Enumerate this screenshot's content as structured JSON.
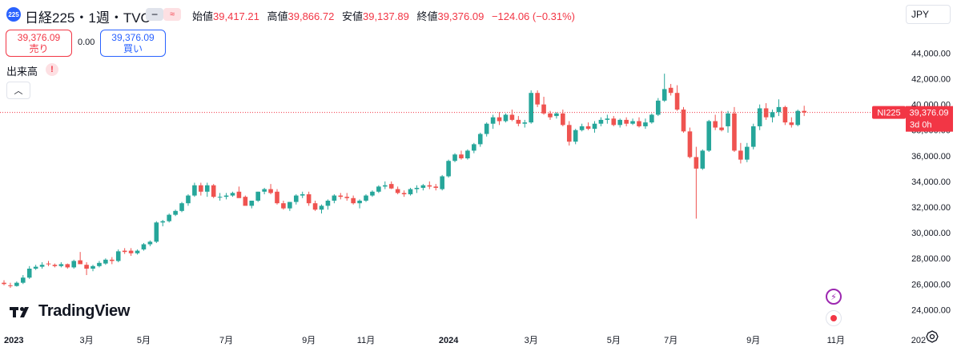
{
  "header": {
    "symbol_icon": "225",
    "title": "日経225・1週・TVC",
    "open_label": "始値",
    "open": "39,417.21",
    "high_label": "高値",
    "high": "39,866.72",
    "low_label": "安値",
    "low": "39,137.89",
    "close_label": "終値",
    "close": "39,376.09",
    "change": "−124.06 (−0.31%)"
  },
  "trade": {
    "sell_price": "39,376.09",
    "sell_label": "売り",
    "spread": "0.00",
    "buy_price": "39,376.09",
    "buy_label": "買い"
  },
  "volume": {
    "label": "出来高",
    "warn": "!"
  },
  "currency": "JPY",
  "price_tag": {
    "symbol": "NI225",
    "price": "39,376.09",
    "countdown": "3d 0h"
  },
  "brand": "TradingView",
  "colors": {
    "up": "#26a69a",
    "down": "#ef5350",
    "current_line": "#f23645"
  },
  "chart_data": {
    "type": "candlestick",
    "ylim": [
      22900,
      45900
    ],
    "y_ticks": [
      {
        "value": 24000,
        "label": "24,000.00"
      },
      {
        "value": 26000,
        "label": "26,000.00"
      },
      {
        "value": 28000,
        "label": "28,000.00"
      },
      {
        "value": 30000,
        "label": "30,000.00"
      },
      {
        "value": 32000,
        "label": "32,000.00"
      },
      {
        "value": 34000,
        "label": "34,000.00"
      },
      {
        "value": 36000,
        "label": "36,000.00"
      },
      {
        "value": 38000,
        "label": "38,000.00"
      },
      {
        "value": 40000,
        "label": "40,000.00"
      },
      {
        "value": 42000,
        "label": "42,000.00"
      },
      {
        "value": 44000,
        "label": "44,000.00"
      }
    ],
    "x_ticks": [
      {
        "index": 0,
        "label": "2023",
        "bold": true
      },
      {
        "index": 13,
        "label": "3月",
        "bold": false
      },
      {
        "index": 22,
        "label": "5月",
        "bold": false
      },
      {
        "index": 35,
        "label": "7月",
        "bold": false
      },
      {
        "index": 48,
        "label": "9月",
        "bold": false
      },
      {
        "index": 57,
        "label": "11月",
        "bold": false
      },
      {
        "index": 70,
        "label": "2024",
        "bold": true
      },
      {
        "index": 83,
        "label": "3月",
        "bold": false
      },
      {
        "index": 96,
        "label": "5月",
        "bold": false
      },
      {
        "index": 105,
        "label": "7月",
        "bold": false
      },
      {
        "index": 118,
        "label": "9月",
        "bold": false
      },
      {
        "index": 131,
        "label": "11月",
        "bold": false
      },
      {
        "index": 144,
        "label": "202",
        "bold": false
      }
    ],
    "candles": [
      [
        26100,
        26300,
        25900,
        26000
      ],
      [
        25900,
        26100,
        25700,
        25850
      ],
      [
        25850,
        26200,
        25800,
        26100
      ],
      [
        26100,
        26700,
        26000,
        26500
      ],
      [
        26500,
        27400,
        26400,
        27200
      ],
      [
        27200,
        27500,
        27100,
        27350
      ],
      [
        27350,
        27700,
        27200,
        27500
      ],
      [
        27600,
        27800,
        27400,
        27550
      ],
      [
        27500,
        27600,
        27300,
        27400
      ],
      [
        27400,
        27700,
        27300,
        27550
      ],
      [
        27550,
        27600,
        27200,
        27300
      ],
      [
        27300,
        27900,
        27200,
        27800
      ],
      [
        27850,
        28500,
        27600,
        27550
      ],
      [
        27500,
        27700,
        26700,
        27200
      ],
      [
        27200,
        27500,
        27000,
        27400
      ],
      [
        27400,
        27800,
        27300,
        27650
      ],
      [
        27600,
        28000,
        27500,
        27900
      ],
      [
        27900,
        28100,
        27550,
        27800
      ],
      [
        27800,
        28700,
        27700,
        28550
      ],
      [
        28600,
        28800,
        28350,
        28500
      ],
      [
        28600,
        28800,
        28200,
        28400
      ],
      [
        28400,
        28700,
        28300,
        28600
      ],
      [
        28700,
        29200,
        28600,
        29100
      ],
      [
        29100,
        29400,
        28950,
        29300
      ],
      [
        29300,
        30900,
        29200,
        30800
      ],
      [
        30800,
        31000,
        30500,
        30900
      ],
      [
        30900,
        31500,
        30800,
        31400
      ],
      [
        31400,
        31800,
        31300,
        31700
      ],
      [
        31700,
        32400,
        31600,
        32300
      ],
      [
        32300,
        33000,
        32100,
        32900
      ],
      [
        32900,
        33900,
        32800,
        33700
      ],
      [
        33700,
        33900,
        32900,
        33200
      ],
      [
        33200,
        33900,
        32800,
        33700
      ],
      [
        33700,
        33800,
        32700,
        32800
      ],
      [
        32800,
        33100,
        32500,
        32800
      ],
      [
        32800,
        33100,
        32600,
        32900
      ],
      [
        32900,
        33200,
        32800,
        33100
      ],
      [
        33200,
        33600,
        32900,
        32700
      ],
      [
        32800,
        32900,
        32200,
        32100
      ],
      [
        32100,
        32500,
        31900,
        32500
      ],
      [
        32500,
        33200,
        32400,
        33200
      ],
      [
        33200,
        33500,
        33000,
        33400
      ],
      [
        33400,
        33800,
        33000,
        33100
      ],
      [
        33200,
        33400,
        32200,
        32300
      ],
      [
        32300,
        32500,
        31800,
        31900
      ],
      [
        31900,
        32400,
        31700,
        32400
      ],
      [
        32400,
        33000,
        32200,
        32900
      ],
      [
        32900,
        33200,
        32700,
        33000
      ],
      [
        33000,
        33200,
        32100,
        32300
      ],
      [
        32300,
        32500,
        31700,
        31800
      ],
      [
        31800,
        32200,
        31500,
        32100
      ],
      [
        32100,
        32600,
        31800,
        32500
      ],
      [
        32500,
        33000,
        32300,
        32900
      ],
      [
        32900,
        33100,
        32600,
        32800
      ],
      [
        32800,
        33100,
        32500,
        32700
      ],
      [
        32700,
        32900,
        32200,
        32300
      ],
      [
        32300,
        32600,
        31900,
        32500
      ],
      [
        32500,
        33000,
        32400,
        32900
      ],
      [
        32900,
        33300,
        32800,
        33200
      ],
      [
        33200,
        33700,
        33100,
        33600
      ],
      [
        33600,
        34000,
        33400,
        33700
      ],
      [
        33800,
        34000,
        33400,
        33450
      ],
      [
        33400,
        33600,
        33000,
        33100
      ],
      [
        33100,
        33300,
        32800,
        33000
      ],
      [
        33000,
        33500,
        32900,
        33400
      ],
      [
        33400,
        33700,
        33100,
        33500
      ],
      [
        33500,
        33800,
        33300,
        33700
      ],
      [
        33700,
        34000,
        33400,
        33600
      ],
      [
        33600,
        33800,
        33300,
        33500
      ],
      [
        33400,
        34500,
        33300,
        34400
      ],
      [
        34400,
        35700,
        34300,
        35600
      ],
      [
        35600,
        36200,
        35500,
        36100
      ],
      [
        36100,
        36400,
        35700,
        35800
      ],
      [
        35800,
        36500,
        35700,
        36400
      ],
      [
        36400,
        37000,
        36200,
        36900
      ],
      [
        36900,
        37800,
        36700,
        37700
      ],
      [
        37700,
        38600,
        37500,
        38500
      ],
      [
        38500,
        39200,
        38100,
        39000
      ],
      [
        39000,
        39400,
        38400,
        38700
      ],
      [
        38700,
        39300,
        38600,
        39200
      ],
      [
        39200,
        39600,
        38700,
        38800
      ],
      [
        38800,
        39100,
        38300,
        38500
      ],
      [
        38500,
        38800,
        38200,
        38600
      ],
      [
        38600,
        41100,
        38500,
        40900
      ],
      [
        40900,
        41100,
        39800,
        40000
      ],
      [
        40000,
        40600,
        39200,
        39300
      ],
      [
        39300,
        39500,
        38800,
        39000
      ],
      [
        39100,
        39400,
        38900,
        39300
      ],
      [
        39300,
        39600,
        38300,
        38400
      ],
      [
        38400,
        38700,
        36800,
        37100
      ],
      [
        37100,
        38100,
        36900,
        38000
      ],
      [
        38000,
        38500,
        37900,
        38300
      ],
      [
        38300,
        38600,
        38000,
        38100
      ],
      [
        38100,
        38700,
        37800,
        38500
      ],
      [
        38500,
        39000,
        38300,
        38800
      ],
      [
        38800,
        39200,
        38500,
        38900
      ],
      [
        38900,
        39100,
        38300,
        38400
      ],
      [
        38400,
        38900,
        38200,
        38800
      ],
      [
        38800,
        39000,
        38300,
        38500
      ],
      [
        38500,
        38900,
        38400,
        38700
      ],
      [
        38700,
        39000,
        38200,
        38300
      ],
      [
        38300,
        38900,
        38100,
        38600
      ],
      [
        38600,
        39300,
        38500,
        39200
      ],
      [
        39200,
        40500,
        39100,
        40300
      ],
      [
        40300,
        42400,
        40200,
        41200
      ],
      [
        41300,
        41600,
        40700,
        40900
      ],
      [
        40900,
        41500,
        39500,
        39600
      ],
      [
        39600,
        39800,
        37800,
        37900
      ],
      [
        37900,
        38200,
        35800,
        35900
      ],
      [
        35900,
        36700,
        31100,
        35000
      ],
      [
        35000,
        36500,
        34900,
        36400
      ],
      [
        36400,
        38800,
        36300,
        38700
      ],
      [
        38700,
        39200,
        38000,
        38200
      ],
      [
        38200,
        39500,
        37900,
        38000
      ],
      [
        38300,
        39500,
        37800,
        39300
      ],
      [
        39300,
        39800,
        36300,
        36400
      ],
      [
        36400,
        37000,
        35400,
        35700
      ],
      [
        35700,
        37000,
        35500,
        36700
      ],
      [
        36700,
        38500,
        36500,
        38300
      ],
      [
        38300,
        40000,
        38000,
        39700
      ],
      [
        39700,
        40100,
        38800,
        39000
      ],
      [
        39000,
        39600,
        38600,
        39400
      ],
      [
        39400,
        40400,
        39100,
        39800
      ],
      [
        39800,
        39900,
        38400,
        38600
      ],
      [
        38600,
        39000,
        38200,
        38400
      ],
      [
        38400,
        39600,
        38300,
        39500
      ],
      [
        39500,
        39900,
        39100,
        39376
      ]
    ]
  }
}
